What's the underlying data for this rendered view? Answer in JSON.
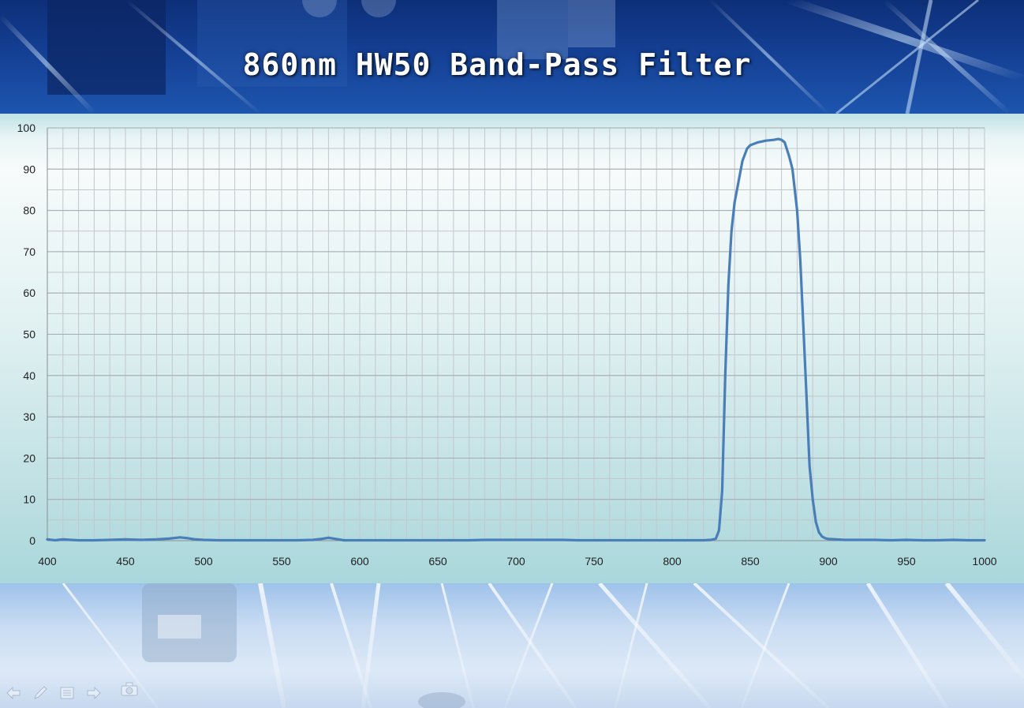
{
  "title": "860nm HW50 Band-Pass Filter",
  "chart_data": {
    "type": "line",
    "title": "860nm HW50 Band-Pass Filter",
    "xlabel": "",
    "ylabel": "",
    "xlim": [
      400,
      1000
    ],
    "ylim": [
      0,
      100
    ],
    "x_ticks": [
      400,
      450,
      500,
      550,
      600,
      650,
      700,
      750,
      800,
      850,
      900,
      950,
      1000
    ],
    "y_ticks": [
      0,
      10,
      20,
      30,
      40,
      50,
      60,
      70,
      80,
      90,
      100
    ],
    "grid": true,
    "legend": "none",
    "line_color": "#4a7eb9",
    "series": [
      {
        "x": [
          400,
          405,
          410,
          415,
          420,
          430,
          440,
          450,
          460,
          470,
          478,
          485,
          490,
          495,
          500,
          510,
          520,
          530,
          540,
          550,
          560,
          570,
          575,
          580,
          585,
          590,
          600,
          610,
          620,
          630,
          640,
          650,
          660,
          670,
          680,
          690,
          700,
          710,
          720,
          730,
          740,
          750,
          760,
          770,
          780,
          790,
          800,
          810,
          820,
          825,
          828,
          830,
          832,
          834,
          836,
          838,
          840,
          842,
          845,
          848,
          850,
          855,
          860,
          865,
          868,
          870,
          872,
          875,
          877,
          880,
          882,
          884,
          886,
          888,
          890,
          892,
          894,
          896,
          898,
          900,
          905,
          910,
          920,
          930,
          940,
          950,
          960,
          970,
          980,
          990,
          1000
        ],
        "y": [
          0.3,
          0.1,
          0.3,
          0.2,
          0.1,
          0.1,
          0.2,
          0.3,
          0.2,
          0.3,
          0.5,
          0.8,
          0.6,
          0.3,
          0.2,
          0.1,
          0.1,
          0.1,
          0.1,
          0.1,
          0.1,
          0.2,
          0.4,
          0.7,
          0.4,
          0.1,
          0.1,
          0.1,
          0.1,
          0.1,
          0.1,
          0.1,
          0.1,
          0.1,
          0.2,
          0.2,
          0.2,
          0.2,
          0.2,
          0.2,
          0.1,
          0.1,
          0.1,
          0.1,
          0.1,
          0.1,
          0.1,
          0.1,
          0.1,
          0.2,
          0.5,
          2.5,
          12,
          40,
          62,
          75,
          82,
          86,
          92,
          95,
          95.8,
          96.5,
          96.9,
          97.1,
          97.3,
          97.1,
          96.5,
          93,
          90,
          80,
          68,
          52,
          35,
          18,
          10,
          4.5,
          2,
          1,
          0.6,
          0.4,
          0.3,
          0.2,
          0.2,
          0.2,
          0.1,
          0.2,
          0.1,
          0.1,
          0.2,
          0.1,
          0.1
        ]
      }
    ]
  },
  "icons": [
    "prev-arrow-icon",
    "pen-icon",
    "menu-icon",
    "next-arrow-icon",
    "camera-icon"
  ]
}
